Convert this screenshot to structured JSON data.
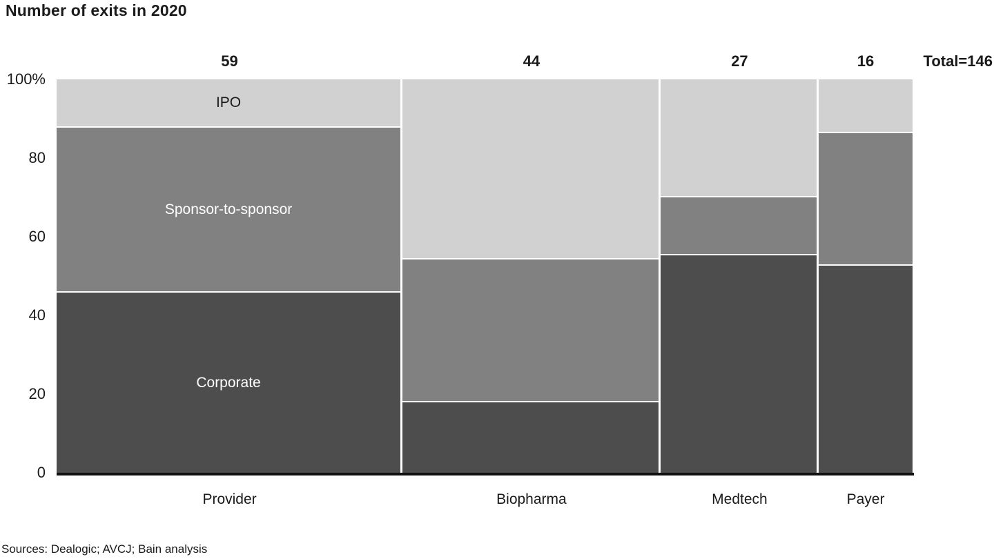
{
  "title": "Number of exits in 2020",
  "source_note": "Sources: Dealogic; AVCJ; Bain analysis",
  "chart_data": {
    "type": "mekko",
    "title": "Number of exits in 2020",
    "total": 146,
    "total_label": "Total=146",
    "segments": [
      "IPO",
      "Sponsor-to-sponsor",
      "Corporate"
    ],
    "colors": [
      "#d1d1d1",
      "#818181",
      "#4d4d4d"
    ],
    "label_colors": [
      "#1a1a1a",
      "#ffffff",
      "#ffffff"
    ],
    "y_axis": {
      "ticks": [
        "100%",
        "80",
        "60",
        "40",
        "20",
        "0"
      ],
      "range": [
        0,
        100
      ],
      "unit": "percent of exits"
    },
    "legend_position": "in-bar-labels",
    "grid": false,
    "columns": [
      {
        "label": "Provider",
        "value": 59,
        "show_segment_labels": true,
        "stack": [
          {
            "name": "IPO",
            "pct": 11.9
          },
          {
            "name": "Sponsor-to-sponsor",
            "pct": 42.0
          },
          {
            "name": "Corporate",
            "pct": 46.1
          }
        ]
      },
      {
        "label": "Biopharma",
        "value": 44,
        "show_segment_labels": false,
        "stack": [
          {
            "name": "IPO",
            "pct": 45.5
          },
          {
            "name": "Sponsor-to-sponsor",
            "pct": 36.3
          },
          {
            "name": "Corporate",
            "pct": 18.2
          }
        ]
      },
      {
        "label": "Medtech",
        "value": 27,
        "show_segment_labels": false,
        "stack": [
          {
            "name": "IPO",
            "pct": 29.6
          },
          {
            "name": "Sponsor-to-sponsor",
            "pct": 14.8
          },
          {
            "name": "Corporate",
            "pct": 55.6
          }
        ]
      },
      {
        "label": "Payer",
        "value": 16,
        "show_segment_labels": false,
        "stack": [
          {
            "name": "IPO",
            "pct": 13.4
          },
          {
            "name": "Sponsor-to-sponsor",
            "pct": 33.6
          },
          {
            "name": "Corporate",
            "pct": 53.0
          }
        ]
      }
    ]
  }
}
